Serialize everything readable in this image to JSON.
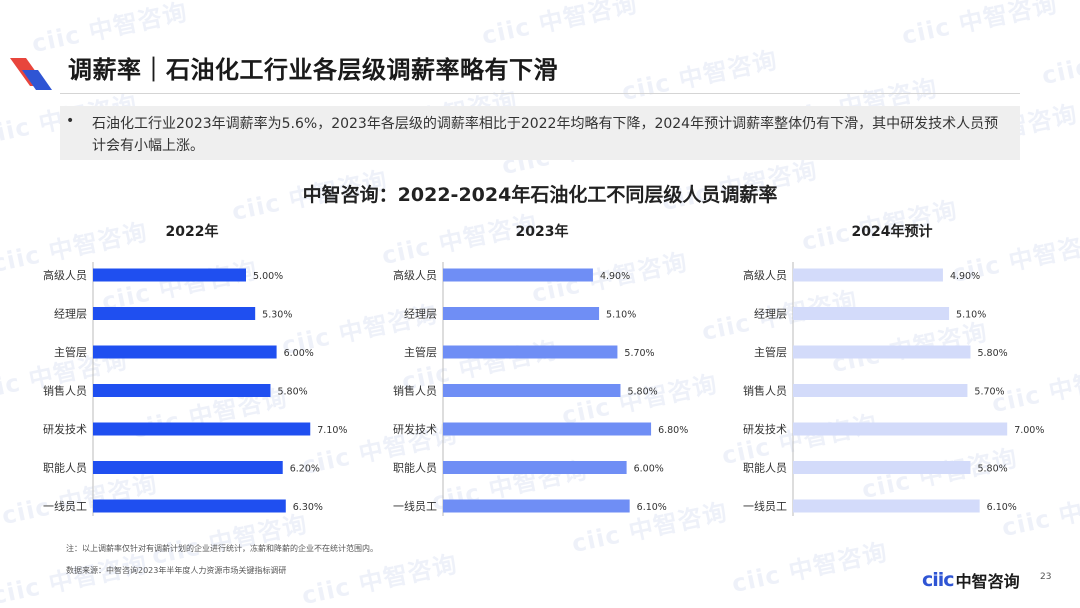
{
  "watermark_text": "ciic 中智咨询",
  "header": {
    "title": "调薪率｜石油化工行业各层级调薪率略有下滑"
  },
  "summary": {
    "bullet": "•",
    "text": "石油化工行业2023年调薪率为5.6%，2023年各层级的调薪率相比于2022年均略有下降，2024年预计调薪率整体仍有下滑，其中研发技术人员预计会有小幅上涨。"
  },
  "chart_data": {
    "type": "bar",
    "orientation": "horizontal",
    "title": "中智咨询：2022-2024年石油化工不同层级人员调薪率",
    "categories": [
      "高级人员",
      "经理层",
      "主管层",
      "销售人员",
      "研发技术",
      "职能人员",
      "一线员工"
    ],
    "panels": [
      {
        "name": "2022年",
        "color": "#1f4ff0",
        "values": [
          5.0,
          5.3,
          6.0,
          5.8,
          7.1,
          6.2,
          6.3
        ],
        "labels": [
          "5.00%",
          "5.30%",
          "6.00%",
          "5.80%",
          "7.10%",
          "6.20%",
          "6.30%"
        ]
      },
      {
        "name": "2023年",
        "color": "#6f8ef5",
        "values": [
          4.9,
          5.1,
          5.7,
          5.8,
          6.8,
          6.0,
          6.1
        ],
        "labels": [
          "4.90%",
          "5.10%",
          "5.70%",
          "5.80%",
          "6.80%",
          "6.00%",
          "6.10%"
        ]
      },
      {
        "name": "2024年预计",
        "color": "#d3dbfa",
        "values": [
          4.9,
          5.1,
          5.8,
          5.7,
          7.0,
          5.8,
          6.1
        ],
        "labels": [
          "4.90%",
          "5.10%",
          "5.80%",
          "5.70%",
          "7.00%",
          "5.80%",
          "6.10%"
        ]
      }
    ],
    "xlim": [
      0,
      8.5
    ],
    "grid": false,
    "legend": "none"
  },
  "footer": {
    "note": "注：以上调薪率仅针对有调薪计划的企业进行统计，冻薪和降薪的企业不在统计范围内。",
    "source": "数据来源：中智咨询2023年半年度人力资源市场关键指标调研",
    "brand_mark": "ciic",
    "brand_name": "中智咨询",
    "page_number": "23"
  },
  "colors": {
    "accent": "#1f4ff0",
    "logo_red": "#e8453c",
    "logo_blue": "#2f55d4"
  }
}
